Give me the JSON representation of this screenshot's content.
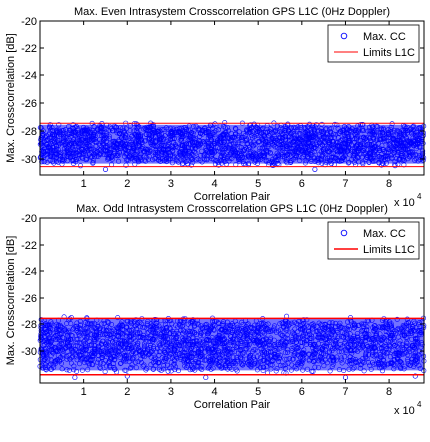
{
  "chart_data": [
    {
      "type": "scatter",
      "title": "Max. Even Intrasystem Crosscorrelation GPS L1C (0Hz Doppler)",
      "xlabel": "Correlation Pair",
      "ylabel": "Max. Crosscorrelation [dB]",
      "x_multiplier": "x 10",
      "x_exponent": "4",
      "xlim": [
        0,
        88000
      ],
      "ylim": [
        -31,
        -20
      ],
      "xticks": [
        1,
        2,
        3,
        4,
        5,
        6,
        7,
        8
      ],
      "yticks": [
        -30,
        -28,
        -26,
        -24,
        -22,
        -20
      ],
      "grid": false,
      "legend_position": "top-right",
      "series": [
        {
          "name": "Max. CC",
          "kind": "markers",
          "color": "#0000ff",
          "band_min": -30.4,
          "band_max": -27.2,
          "outliers": [
            [
              15000,
              -30.6
            ],
            [
              63000,
              -30.6
            ]
          ]
        },
        {
          "name": "Limits L1C",
          "kind": "line",
          "color": "#ff0000",
          "values": [
            -27.3,
            -30.4
          ]
        }
      ]
    },
    {
      "type": "scatter",
      "title": "Max. Odd Intrasystem Crosscorrelation GPS L1C (0Hz Doppler)",
      "xlabel": "Correlation Pair",
      "ylabel": "Max. Crosscorrelation [dB]",
      "x_multiplier": "x 10",
      "x_exponent": "4",
      "xlim": [
        0,
        88000
      ],
      "ylim": [
        -31,
        -19
      ],
      "xticks": [
        1,
        2,
        3,
        4,
        5,
        6,
        7,
        8
      ],
      "yticks": [
        -30,
        -28,
        -26,
        -24,
        -22,
        -20
      ],
      "grid": false,
      "legend_position": "top-right",
      "series": [
        {
          "name": "Max. CC",
          "kind": "markers",
          "color": "#0000ff",
          "band_min": -30.3,
          "band_max": -26.1,
          "outliers": [
            [
              8000,
              -30.6
            ],
            [
              20000,
              -30.5
            ],
            [
              38000,
              -30.6
            ],
            [
              70000,
              -30.6
            ],
            [
              86000,
              -30.5
            ]
          ]
        },
        {
          "name": "Limits L1C",
          "kind": "line",
          "color": "#ff0000",
          "values": [
            -26.3,
            -30.4
          ]
        }
      ]
    }
  ]
}
